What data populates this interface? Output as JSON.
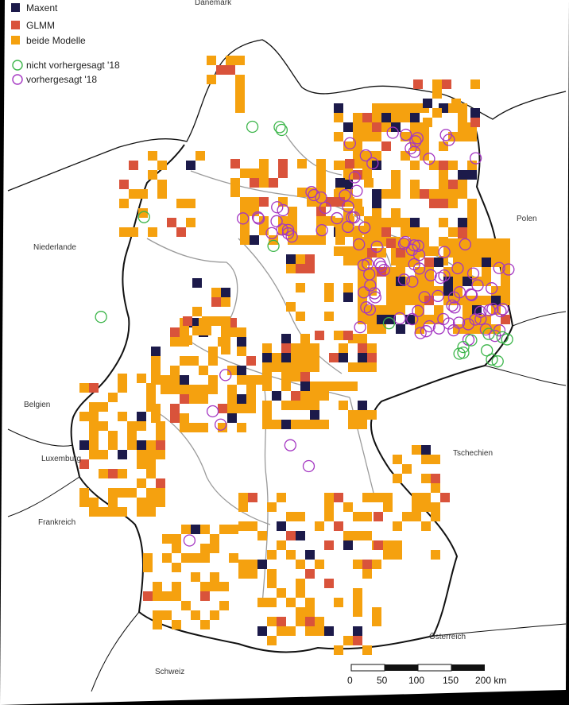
{
  "legend": {
    "items": [
      {
        "label": "Maxent",
        "color": "#1c1a4a",
        "kind": "square"
      },
      {
        "label": "GLMM",
        "color": "#d9533b",
        "kind": "square"
      },
      {
        "label": "beide Modelle",
        "color": "#f5a10f",
        "kind": "square"
      },
      {
        "label": "nicht vorhergesagt '18",
        "color": "#3cb54a",
        "kind": "circle"
      },
      {
        "label": "vorhergesagt '18",
        "color": "#a436c2",
        "kind": "circle"
      }
    ]
  },
  "countries": {
    "daenemark": "Dänemark",
    "niederlande": "Niederlande",
    "polen": "Polen",
    "belgien": "Belgien",
    "luxemburg": "Luxemburg",
    "tschechien": "Tschechien",
    "frankreich": "Frankreich",
    "oesterreich": "Österreich",
    "schweiz": "Schweiz"
  },
  "scale": {
    "ticks": [
      "0",
      "50",
      "100",
      "150",
      "200 km"
    ]
  },
  "colors": {
    "background": "#ffffff",
    "border_national": "#111111",
    "border_state": "#9a9a9a"
  }
}
